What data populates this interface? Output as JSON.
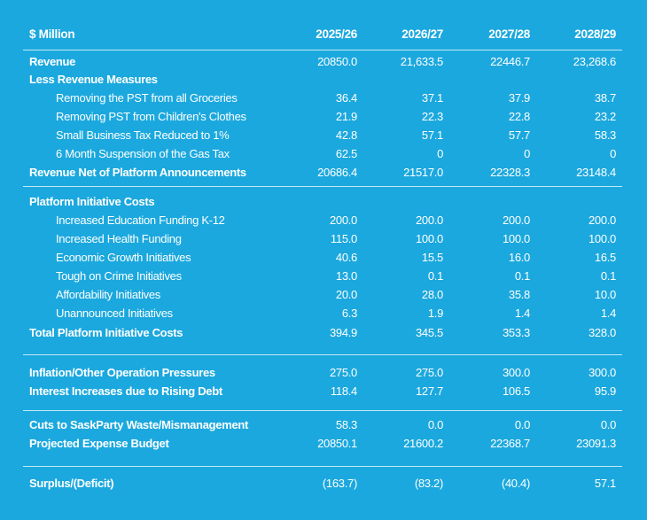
{
  "header": {
    "label": "$ Million",
    "years": [
      "2025/26",
      "2026/27",
      "2027/28",
      "2028/29"
    ]
  },
  "rows": [
    {
      "label": "Revenue",
      "style": "bold",
      "values": [
        "20850.0",
        "21,633.5",
        "22446.7",
        "23,268.6"
      ]
    },
    {
      "label": "Less Revenue Measures",
      "style": "bold",
      "values": [
        "",
        "",
        "",
        ""
      ]
    },
    {
      "label": "Removing the PST from all Groceries",
      "style": "indent",
      "values": [
        "36.4",
        "37.1",
        "37.9",
        "38.7"
      ]
    },
    {
      "label": "Removing PST from Children's Clothes",
      "style": "indent",
      "values": [
        "21.9",
        "22.3",
        "22.8",
        "23.2"
      ]
    },
    {
      "label": "Small Business Tax Reduced to 1%",
      "style": "indent",
      "values": [
        "42.8",
        "57.1",
        "57.7",
        "58.3"
      ]
    },
    {
      "label": "6 Month Suspension of the Gas Tax",
      "style": "indent",
      "values": [
        "62.5",
        "0",
        "0",
        "0"
      ]
    },
    {
      "label": "Revenue Net of Platform Announcements",
      "style": "bold",
      "values": [
        "20686.4",
        "21517.0",
        "22328.3",
        "23148.4"
      ]
    },
    {
      "label": "Platform Initiative Costs",
      "style": "bold",
      "values": [
        "",
        "",
        "",
        ""
      ]
    },
    {
      "label": "Increased Education Funding K-12",
      "style": "indent",
      "values": [
        "200.0",
        "200.0",
        "200.0",
        "200.0"
      ]
    },
    {
      "label": "Increased Health Funding",
      "style": "indent",
      "values": [
        "115.0",
        "100.0",
        "100.0",
        "100.0"
      ]
    },
    {
      "label": "Economic Growth Initiatives",
      "style": "indent",
      "values": [
        "40.6",
        "15.5",
        "16.0",
        "16.5"
      ]
    },
    {
      "label": "Tough on Crime Initiatives",
      "style": "indent",
      "values": [
        "13.0",
        "0.1",
        "0.1",
        "0.1"
      ]
    },
    {
      "label": "Affordability Initiatives",
      "style": "indent",
      "values": [
        "20.0",
        "28.0",
        "35.8",
        "10.0"
      ]
    },
    {
      "label": "Unannounced Initiatives",
      "style": "indent",
      "values": [
        "6.3",
        "1.9",
        "1.4",
        "1.4"
      ]
    },
    {
      "label": "Total Platform Initiative Costs",
      "style": "bold",
      "values": [
        "394.9",
        "345.5",
        "353.3",
        "328.0"
      ]
    },
    {
      "label": "Inflation/Other Operation Pressures",
      "style": "bold",
      "values": [
        "275.0",
        "275.0",
        "300.0",
        "300.0"
      ]
    },
    {
      "label": "Interest Increases due to Rising Debt",
      "style": "bold",
      "values": [
        "118.4",
        "127.7",
        "106.5",
        "95.9"
      ]
    },
    {
      "label": "Cuts to SaskParty Waste/Mismanagement",
      "style": "bold",
      "values": [
        "58.3",
        "0.0",
        "0.0",
        "0.0"
      ]
    },
    {
      "label": "Projected Expense Budget",
      "style": "bold",
      "values": [
        "20850.1",
        "21600.2",
        "22368.7",
        "23091.3"
      ]
    },
    {
      "label": "Surplus/(Deficit)",
      "style": "bold",
      "values": [
        "(163.7)",
        "(83.2)",
        "(40.4)",
        "57.1"
      ]
    }
  ]
}
